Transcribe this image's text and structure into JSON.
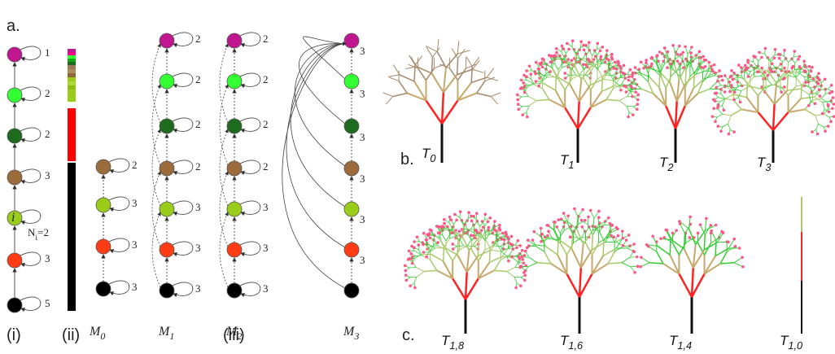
{
  "panel_labels": {
    "a": "a.",
    "b": "b.",
    "c": "c."
  },
  "column_labels": [
    "(i)",
    "(ii)",
    "(iii)"
  ],
  "column_i": {
    "loop_labels": [
      1,
      2,
      2,
      3,
      3,
      5
    ],
    "node_label": "i",
    "count_label": {
      "base": "N",
      "sub": "i",
      "suffix": "=2"
    }
  },
  "graphs": [
    {
      "name": {
        "base": "M",
        "sub": "0"
      },
      "loop_labels": [
        2,
        3,
        3,
        3
      ]
    },
    {
      "name": {
        "base": "M",
        "sub": "1"
      },
      "loop_labels": [
        2,
        2,
        2,
        2,
        3,
        3,
        3
      ]
    },
    {
      "name": {
        "base": "M",
        "sub": "2"
      },
      "loop_labels": [
        2,
        2,
        2,
        2,
        3,
        3,
        3
      ]
    },
    {
      "name": {
        "base": "M",
        "sub": "3"
      },
      "edge_labels": [
        3,
        3,
        3,
        3,
        3,
        3
      ]
    }
  ],
  "trees": [
    {
      "base": "T",
      "sub": "0"
    },
    {
      "base": "T",
      "sub": "1"
    },
    {
      "base": "T",
      "sub": "2"
    },
    {
      "base": "T",
      "sub": "3"
    },
    {
      "base": "T",
      "sub": "1,8"
    },
    {
      "base": "T",
      "sub": "1,6"
    },
    {
      "base": "T",
      "sub": "1,4"
    },
    {
      "base": "T",
      "sub": "1,0"
    }
  ]
}
